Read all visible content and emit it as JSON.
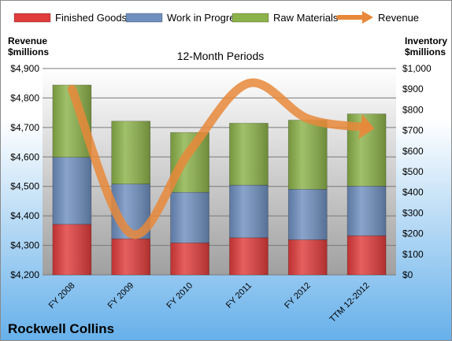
{
  "chart_data": {
    "type": "bar",
    "title": "12-Month Periods",
    "company": "Rockwell Collins",
    "y_left_label": [
      "Revenue",
      "$millions"
    ],
    "y_right_label": [
      "Inventory",
      "$millions"
    ],
    "categories": [
      "FY 2008",
      "FY 2009",
      "FY 2010",
      "FY 2011",
      "FY 2012",
      "TTM 12-2012"
    ],
    "stacked": true,
    "grid": true,
    "legend": "top",
    "y_left": {
      "min": 4200,
      "max": 4900,
      "step": 100,
      "ticks": [
        "$4,200",
        "$4,300",
        "$4,400",
        "$4,500",
        "$4,600",
        "$4,700",
        "$4,800",
        "$4,900"
      ]
    },
    "y_right": {
      "min": 0,
      "max": 1000,
      "step": 100,
      "ticks": [
        "$0",
        "$100",
        "$200",
        "$300",
        "$400",
        "$500",
        "$600",
        "$700",
        "$800",
        "$900",
        "$1,000"
      ]
    },
    "series": [
      {
        "name": "Finished Goods",
        "axis": "right",
        "color": "#e03c3c",
        "values": [
          245,
          175,
          155,
          180,
          170,
          190
        ]
      },
      {
        "name": "Work in Progress",
        "axis": "right",
        "color": "#6f8fbf",
        "values": [
          325,
          265,
          245,
          255,
          245,
          240
        ]
      },
      {
        "name": "Raw Materials",
        "axis": "right",
        "color": "#8cb24a",
        "values": [
          350,
          305,
          290,
          300,
          335,
          350
        ]
      },
      {
        "name": "Revenue",
        "axis": "left",
        "type": "line",
        "color": "#e8883a",
        "values": [
          4830,
          4340,
          4620,
          4850,
          4730,
          4700
        ]
      }
    ]
  }
}
